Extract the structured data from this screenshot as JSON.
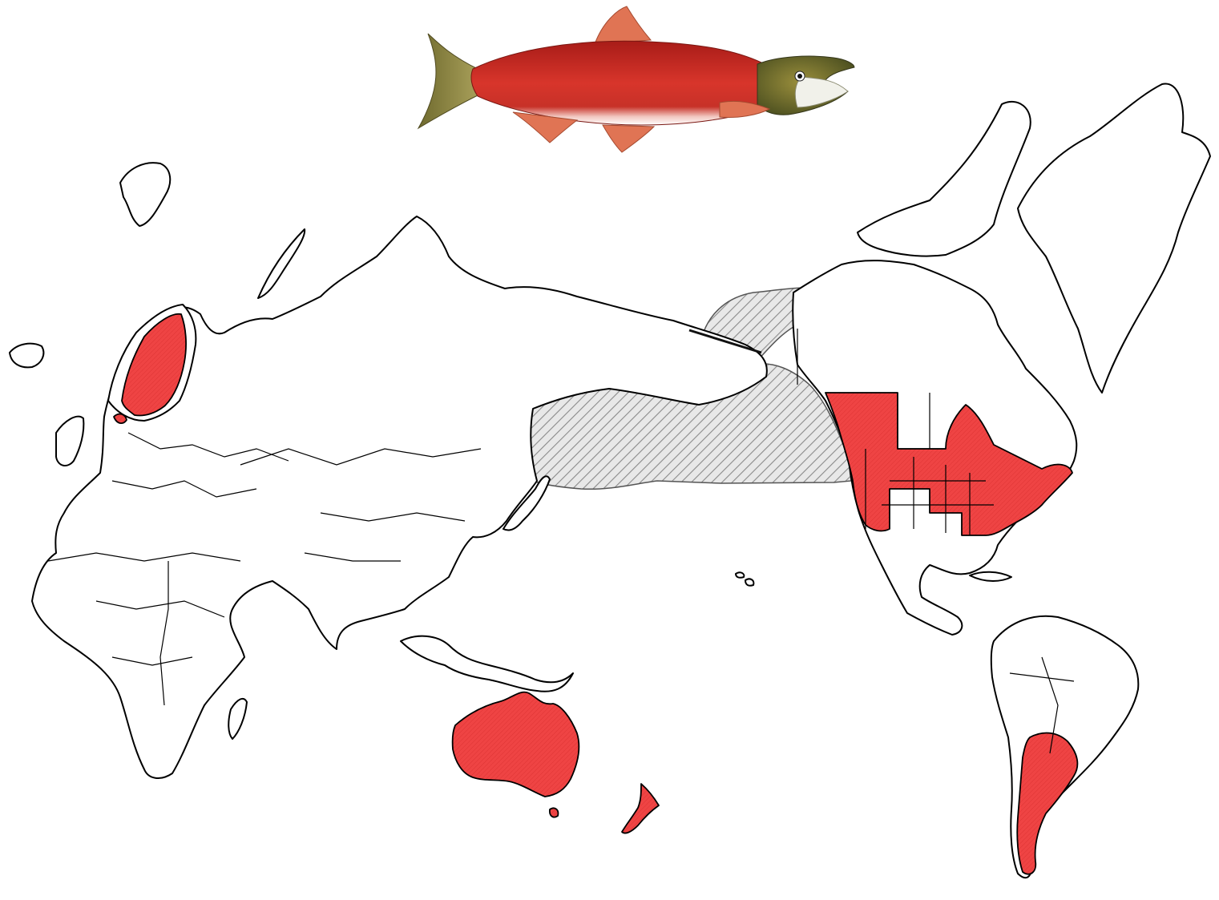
{
  "map": {
    "subject_icon": "sockeye-salmon-illustration",
    "legend": [],
    "colors": {
      "background": "#ffffff",
      "land_fill": "#ffffff",
      "outline": "#000000",
      "introduced_range": "#ef4444",
      "native_range_hatch": "#8a8a8a",
      "native_range_fill": "#e8e8e8"
    },
    "ranges": {
      "native": [
        "north-pacific-ocean",
        "bering-sea",
        "alaska",
        "kamchatka",
        "northwestern-canada"
      ],
      "introduced": [
        "norway",
        "sweden",
        "finland",
        "denmark",
        "australia",
        "new-zealand",
        "argentina",
        "chile",
        "canada",
        "united-states"
      ]
    }
  }
}
